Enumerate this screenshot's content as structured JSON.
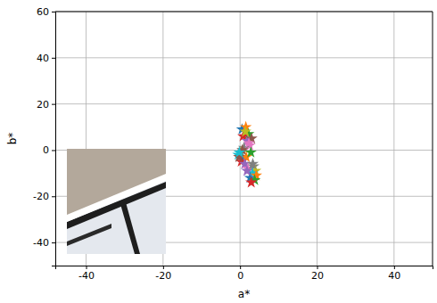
{
  "chart_data": {
    "type": "scatter",
    "x_label": "a*",
    "y_label": "b*",
    "x": [
      0.5,
      1.5,
      2.2,
      0.8,
      1.9,
      3.0,
      2.5,
      1.0,
      0.2,
      -0.5,
      0.8,
      1.6,
      2.8,
      0.3,
      1.2,
      -0.3,
      2.0,
      3.5,
      4.0,
      3.2,
      2.6,
      4.2,
      3.8,
      2.9,
      1.8,
      0.6,
      2.3,
      3.3,
      1.4,
      -0.2
    ],
    "values": [
      9,
      10,
      7,
      6,
      4,
      5,
      2,
      1,
      -1,
      -2,
      -4,
      -3,
      -1,
      -5,
      -6,
      -3,
      -8,
      -7,
      -9,
      -10,
      -12,
      -11,
      -13,
      -14,
      -9,
      0,
      3,
      -6,
      8,
      -1
    ],
    "colors": [
      "#1f77b4",
      "#ff7f0e",
      "#2ca02c",
      "#d62728",
      "#9467bd",
      "#8c564b",
      "#e377c2",
      "#7f7f7f",
      "#bcbd22",
      "#17becf",
      "#1f77b4",
      "#ff7f0e",
      "#2ca02c",
      "#d62728",
      "#9467bd",
      "#8c564b",
      "#e377c2",
      "#7f7f7f",
      "#bcbd22",
      "#17becf",
      "#1f77b4",
      "#ff7f0e",
      "#2ca02c",
      "#d62728",
      "#9467bd",
      "#8c564b",
      "#e377c2",
      "#7f7f7f",
      "#bcbd22",
      "#17becf"
    ],
    "marker": "star",
    "xlim": [
      -48,
      50
    ],
    "ylim": [
      -50,
      60
    ],
    "xticks": [
      -40,
      -20,
      0,
      20,
      40
    ],
    "yticks": [
      -40,
      -20,
      0,
      20,
      40,
      60
    ],
    "grid": true
  }
}
